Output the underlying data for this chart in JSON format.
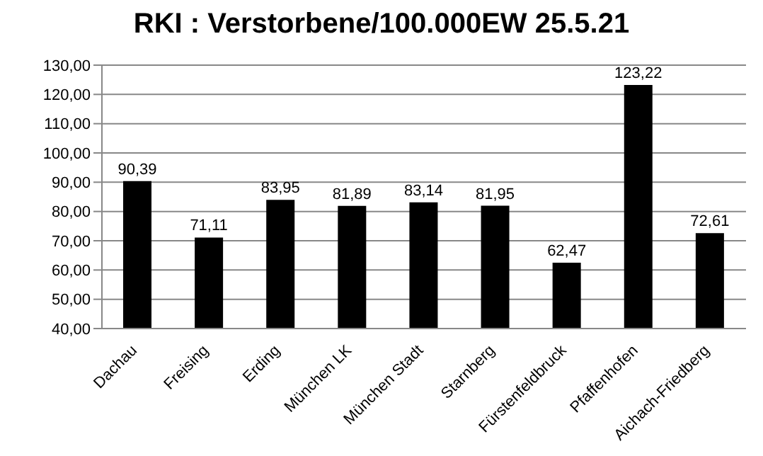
{
  "chart_data": {
    "type": "bar",
    "title": "RKI : Verstorbene/100.000EW 25.5.21",
    "categories": [
      "Dachau",
      "Freising",
      "Erding",
      "München LK",
      "München Stadt",
      "Starnberg",
      "Fürstenfeldbruck",
      "Pfaffenhofen",
      "Aichach-Friedberg"
    ],
    "values": [
      90.39,
      71.11,
      83.95,
      81.89,
      83.14,
      81.95,
      62.47,
      123.22,
      72.61
    ],
    "value_labels": [
      "90,39",
      "71,11",
      "83,95",
      "81,89",
      "83,14",
      "81,95",
      "62,47",
      "123,22",
      "72,61"
    ],
    "color": "#000000",
    "ylim": [
      40,
      130
    ],
    "yticks": [
      {
        "value": 40,
        "label": "40,00"
      },
      {
        "value": 50,
        "label": "50,00"
      },
      {
        "value": 60,
        "label": "60,00"
      },
      {
        "value": 70,
        "label": "70,00"
      },
      {
        "value": 80,
        "label": "80,00"
      },
      {
        "value": 90,
        "label": "90,00"
      },
      {
        "value": 100,
        "label": "100,00"
      },
      {
        "value": 110,
        "label": "110,00"
      },
      {
        "value": 120,
        "label": "120,00"
      },
      {
        "value": 130,
        "label": "130,00"
      }
    ],
    "grid": "y",
    "legend": false
  }
}
